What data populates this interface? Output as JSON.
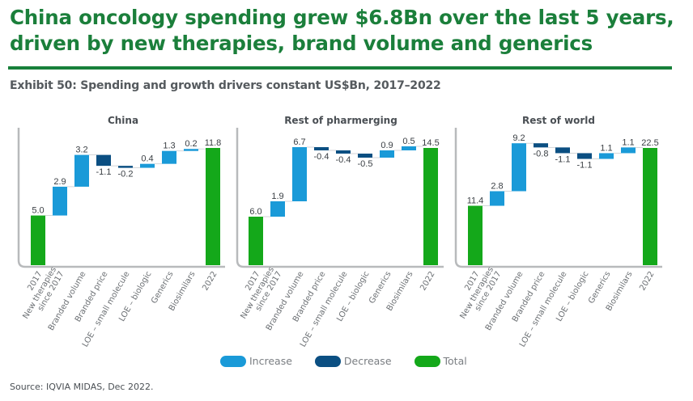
{
  "header": {
    "title": "China oncology spending grew $6.8Bn over the last 5 years, driven by new therapies, brand volume and generics",
    "exhibit": "Exhibit 50: Spending and growth drivers constant US$Bn, 2017–2022"
  },
  "colors": {
    "increase": "#1a9ad8",
    "decrease": "#0b4f82",
    "total": "#14a81a",
    "title": "#1b7f3b"
  },
  "legend": {
    "items": [
      {
        "label": "Increase",
        "key": "increase"
      },
      {
        "label": "Decrease",
        "key": "decrease"
      },
      {
        "label": "Total",
        "key": "total"
      }
    ]
  },
  "source": "Source: IQVIA MIDAS, Dec 2022.",
  "chart_data": [
    {
      "type": "bar",
      "subtype": "waterfall",
      "title": "China",
      "categories": [
        "2017",
        "New therapies since 2017",
        "Branded volume",
        "Branded price",
        "LOE – small molecule",
        "LOE – biologic",
        "Generics",
        "Biosimilars",
        "2022"
      ],
      "category_lines": [
        [
          "2017"
        ],
        [
          "New therapies",
          "since 2017"
        ],
        [
          "Branded volume"
        ],
        [
          "Branded price"
        ],
        [
          "LOE – small molecule"
        ],
        [
          "LOE – biologic"
        ],
        [
          "Generics"
        ],
        [
          "Biosimilars"
        ],
        [
          "2022"
        ]
      ],
      "values": [
        5.0,
        2.9,
        3.2,
        -1.1,
        -0.2,
        0.4,
        1.3,
        0.2,
        11.8
      ],
      "labels": [
        "5.0",
        "2.9",
        "3.2",
        "-1.1",
        "-0.2",
        "0.4",
        "1.3",
        "0.2",
        "11.8"
      ],
      "kinds": [
        "total",
        "increase",
        "increase",
        "decrease",
        "decrease",
        "increase",
        "increase",
        "increase",
        "total"
      ],
      "xlabel": "",
      "ylabel": "US$Bn",
      "ylim": [
        0,
        12.4
      ],
      "grid": false
    },
    {
      "type": "bar",
      "subtype": "waterfall",
      "title": "Rest of pharmerging",
      "categories": [
        "2017",
        "New therapies since 2017",
        "Branded volume",
        "Branded price",
        "LOE – small molecule",
        "LOE – biologic",
        "Generics",
        "Biosimilars",
        "2022"
      ],
      "category_lines": [
        [
          "2017"
        ],
        [
          "New therapies",
          "since 2017"
        ],
        [
          "Branded volume"
        ],
        [
          "Branded price"
        ],
        [
          "LOE – small molecule"
        ],
        [
          "LOE – biologic"
        ],
        [
          "Generics"
        ],
        [
          "Biosimilars"
        ],
        [
          "2022"
        ]
      ],
      "values": [
        6.0,
        1.9,
        6.7,
        -0.4,
        -0.4,
        -0.5,
        0.9,
        0.5,
        14.5
      ],
      "labels": [
        "6.0",
        "1.9",
        "6.7",
        "-0.4",
        "-0.4",
        "-0.5",
        "0.9",
        "0.5",
        "14.5"
      ],
      "kinds": [
        "total",
        "increase",
        "increase",
        "decrease",
        "decrease",
        "decrease",
        "increase",
        "increase",
        "total"
      ],
      "xlabel": "",
      "ylabel": "US$Bn",
      "ylim": [
        0,
        14.9
      ],
      "grid": false
    },
    {
      "type": "bar",
      "subtype": "waterfall",
      "title": "Rest of world",
      "categories": [
        "2017",
        "New therapies since 2017",
        "Branded volume",
        "Branded price",
        "LOE – small molecule",
        "LOE – biologic",
        "Generics",
        "Biosimilars",
        "2022"
      ],
      "category_lines": [
        [
          "2017"
        ],
        [
          "New therapies",
          "since 2017"
        ],
        [
          "Branded volume"
        ],
        [
          "Branded price"
        ],
        [
          "LOE – small molecule"
        ],
        [
          "LOE – biologic"
        ],
        [
          "Generics"
        ],
        [
          "Biosimilars"
        ],
        [
          "2022"
        ]
      ],
      "values": [
        11.4,
        2.8,
        9.2,
        -0.8,
        -1.1,
        -1.1,
        1.1,
        1.1,
        22.5
      ],
      "labels": [
        "11.4",
        "2.8",
        "9.2",
        "-0.8",
        "-1.1",
        "-1.1",
        "1.1",
        "1.1",
        "22.5"
      ],
      "kinds": [
        "total",
        "increase",
        "increase",
        "decrease",
        "decrease",
        "decrease",
        "increase",
        "increase",
        "total"
      ],
      "xlabel": "",
      "ylabel": "US$Bn",
      "ylim": [
        0,
        23.1
      ],
      "grid": false
    }
  ]
}
